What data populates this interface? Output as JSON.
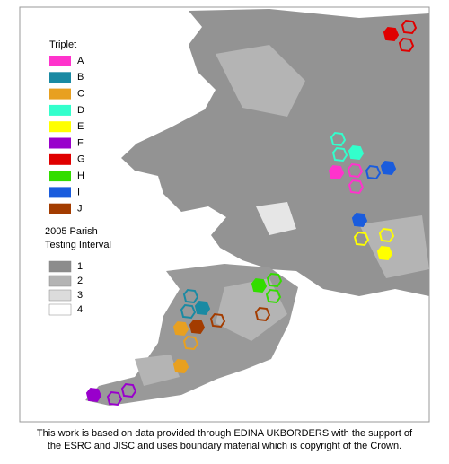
{
  "triplet_legend": {
    "title": "Triplet",
    "items": [
      {
        "label": "A",
        "color": "#ff33cc"
      },
      {
        "label": "B",
        "color": "#1a8aa3"
      },
      {
        "label": "C",
        "color": "#e8a020"
      },
      {
        "label": "D",
        "color": "#33ffcc"
      },
      {
        "label": "E",
        "color": "#ffff00"
      },
      {
        "label": "F",
        "color": "#9900cc"
      },
      {
        "label": "G",
        "color": "#e00000"
      },
      {
        "label": "H",
        "color": "#33dd00"
      },
      {
        "label": "I",
        "color": "#1a5cdd"
      },
      {
        "label": "J",
        "color": "#a33c00"
      }
    ]
  },
  "interval_legend": {
    "title_lines": [
      "2005 Parish",
      "Testing Interval"
    ],
    "items": [
      {
        "label": "1",
        "color": "#8c8c8c"
      },
      {
        "label": "2",
        "color": "#b4b4b4"
      },
      {
        "label": "3",
        "color": "#dcdcdc"
      },
      {
        "label": "4",
        "color": "#ffffff"
      }
    ]
  },
  "footer_lines": [
    "This work is based on data provided through EDINA UKBORDERS with the support of",
    "the ESRC and JISC and uses boundary material which is copyright of the Crown."
  ]
}
